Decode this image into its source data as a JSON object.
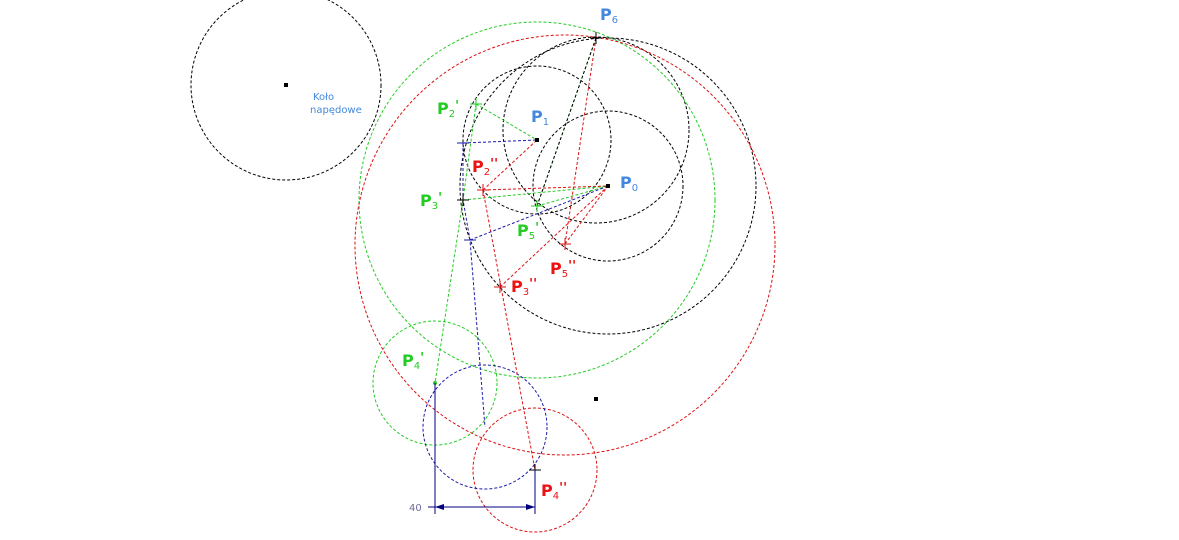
{
  "colors": {
    "black": "#000000",
    "green": "#22cc22",
    "red": "#dd1111",
    "blue": "#1a1aaa",
    "label_blue": "#4488dd",
    "label_green": "#22cc22",
    "label_red": "#ee1111",
    "dim_text": "#6b6ba0"
  },
  "drive_wheel": {
    "line1": "Koło",
    "line2": "napędowe"
  },
  "points": {
    "p0": {
      "main": "P",
      "sub": "0",
      "mark": ""
    },
    "p1": {
      "main": "P",
      "sub": "1",
      "mark": ""
    },
    "p6": {
      "main": "P",
      "sub": "6",
      "mark": ""
    },
    "p2_1": {
      "main": "P",
      "sub": "2",
      "mark": "'"
    },
    "p3_1": {
      "main": "P",
      "sub": "3",
      "mark": "'"
    },
    "p4_1": {
      "main": "P",
      "sub": "4",
      "mark": "'"
    },
    "p5_1": {
      "main": "P",
      "sub": "5",
      "mark": "'"
    },
    "p2_2": {
      "main": "P",
      "sub": "2",
      "mark": "''"
    },
    "p3_2": {
      "main": "P",
      "sub": "3",
      "mark": "''"
    },
    "p4_2": {
      "main": "P",
      "sub": "4",
      "mark": "''"
    },
    "p5_2": {
      "main": "P",
      "sub": "5",
      "mark": "''"
    }
  },
  "dimension": {
    "value": "40"
  }
}
